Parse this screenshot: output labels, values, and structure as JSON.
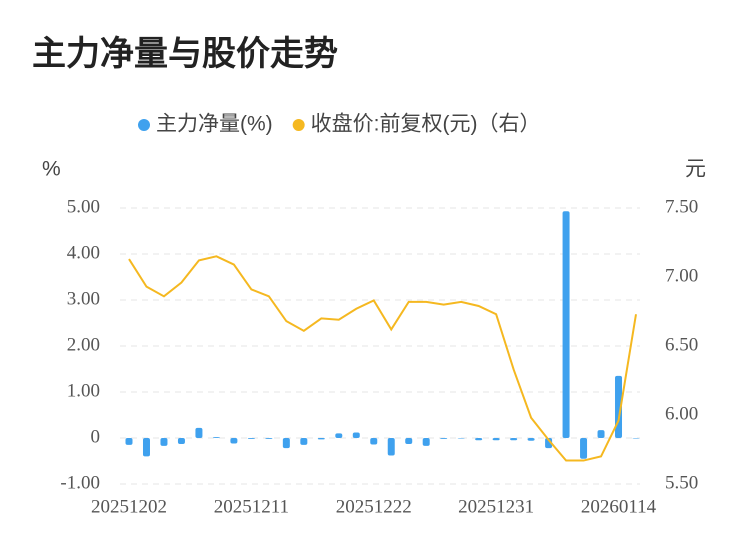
{
  "chart_data": {
    "type": "bar_line",
    "title": "主力净量与股价走势",
    "y_label": "%",
    "y2_label": "元",
    "categories": [
      "20251202",
      null,
      null,
      null,
      null,
      null,
      null,
      "20251211",
      null,
      null,
      null,
      null,
      null,
      null,
      "20251222",
      null,
      null,
      null,
      null,
      null,
      null,
      "20251231",
      null,
      null,
      null,
      null,
      null,
      null,
      "20260114",
      null
    ],
    "series": [
      {
        "name": "主力净量(%)",
        "color": "#3fa1ee",
        "type": "bar",
        "values": [
          -0.15,
          -0.4,
          -0.17,
          -0.13,
          0.22,
          0.02,
          -0.12,
          -0.02,
          -0.02,
          -0.22,
          -0.15,
          -0.03,
          0.1,
          0.12,
          -0.14,
          -0.38,
          -0.13,
          -0.17,
          -0.02,
          -0.01,
          -0.05,
          -0.05,
          -0.05,
          -0.06,
          -0.22,
          4.93,
          -0.45,
          0.17,
          1.35,
          0
        ]
      },
      {
        "name": "收盘价:前复权(元)（右）",
        "color": "#f5b820",
        "type": "line",
        "axis": "y2",
        "values": [
          7.13,
          6.93,
          6.86,
          6.96,
          7.12,
          7.15,
          7.09,
          6.91,
          6.86,
          6.68,
          6.61,
          6.7,
          6.69,
          6.77,
          6.83,
          6.62,
          6.82,
          6.82,
          6.8,
          6.82,
          6.79,
          6.73,
          6.33,
          5.98,
          5.82,
          5.67,
          5.67,
          5.7,
          5.96,
          6.73
        ]
      }
    ],
    "ylim": [
      -1,
      5
    ],
    "yticks": [
      {
        "value": -1,
        "label": "-1.00"
      },
      0,
      {
        "value": 1,
        "label": "1.00"
      },
      {
        "value": 2,
        "label": "2.00"
      },
      {
        "value": 3,
        "label": "3.00"
      },
      {
        "value": 4,
        "label": "4.00"
      },
      {
        "value": 5,
        "label": "5.00"
      }
    ],
    "y2lim": [
      5.5,
      7.5
    ],
    "y2ticks": [
      {
        "value": 5.5,
        "label": "5.50"
      },
      {
        "value": 6,
        "label": "6.00"
      },
      {
        "value": 6.5,
        "label": "6.50"
      },
      {
        "value": 7,
        "label": "7.00"
      },
      {
        "value": 7.5,
        "label": "7.50"
      }
    ],
    "grid": true,
    "legend": "top"
  }
}
